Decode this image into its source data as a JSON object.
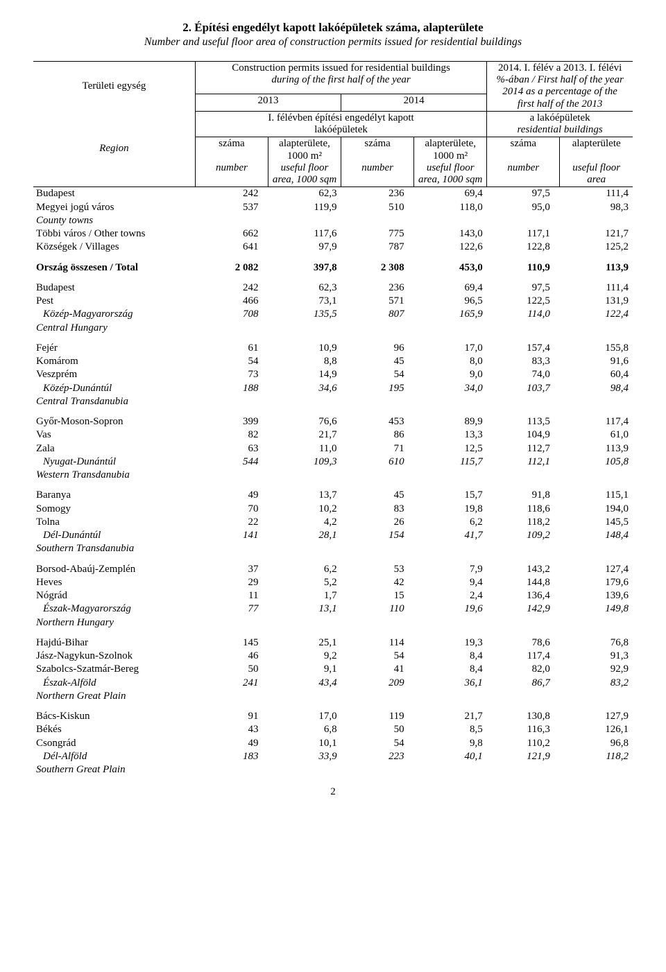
{
  "title": "2. Építési engedélyt kapott lakóépületek száma, alapterülete",
  "subtitle": "Number and useful floor area of construction permits issued for residential buildings",
  "header": {
    "top_left_unit": "Területi egység",
    "top_left_region": "Region",
    "issued_hu": "Construction permits issued for residential buildings",
    "issued_en": "during of the first half of the year",
    "pct_line1": "2014. I. félév a 2013. I. félévi",
    "pct_line2": "%-ában / First half of the year",
    "pct_line3": "2014 as a percentage of the",
    "pct_line4": "first half of the 2013",
    "y2013": "2013",
    "y2014": "2014",
    "span_left_hu": "I. félévben építési engedélyt kapott",
    "span_left_hu2": "lakóépületek",
    "span_right_hu": "a lakóépületek",
    "span_right_en": "residential buildings",
    "col_szama": "száma",
    "col_alap": "alapterülete,",
    "col_alap_u": "1000 m²",
    "col_alap_last": "alapterülete",
    "col_number": "number",
    "col_area": "useful floor",
    "col_area2a": "area, 1000 sqm",
    "col_area2b": "area"
  },
  "rows": [
    {
      "g": "first",
      "label": "Budapest",
      "v": [
        "242",
        "62,3",
        "236",
        "69,4",
        "97,5",
        "111,4"
      ]
    },
    {
      "g": "first",
      "label": "Megyei jogú város",
      "v": [
        "537",
        "119,9",
        "510",
        "118,0",
        "95,0",
        "98,3"
      ]
    },
    {
      "g": "first",
      "label": "County towns",
      "italic": true,
      "v": [
        "",
        "",
        "",
        "",
        "",
        ""
      ]
    },
    {
      "g": "first",
      "label": "Többi város / Other towns",
      "v": [
        "662",
        "117,6",
        "775",
        "143,0",
        "117,1",
        "121,7"
      ]
    },
    {
      "g": "first",
      "label": "Községek / Villages",
      "v": [
        "641",
        "97,9",
        "787",
        "122,6",
        "122,8",
        "125,2"
      ]
    },
    {
      "spacer": true
    },
    {
      "g": "total",
      "label": "Ország összesen / Total",
      "bold": true,
      "v": [
        "2 082",
        "397,8",
        "2 308",
        "453,0",
        "110,9",
        "113,9"
      ]
    },
    {
      "spacer": true
    },
    {
      "g": "b1",
      "label": "Budapest",
      "v": [
        "242",
        "62,3",
        "236",
        "69,4",
        "97,5",
        "111,4"
      ]
    },
    {
      "g": "b1",
      "label": "Pest",
      "v": [
        "466",
        "73,1",
        "571",
        "96,5",
        "122,5",
        "131,9"
      ]
    },
    {
      "g": "b1",
      "label": "Közép-Magyarország",
      "italic": true,
      "indent": true,
      "v": [
        "708",
        "135,5",
        "807",
        "165,9",
        "114,0",
        "122,4"
      ]
    },
    {
      "g": "b1",
      "label": "Central Hungary",
      "italic": true,
      "v": [
        "",
        "",
        "",
        "",
        "",
        ""
      ]
    },
    {
      "spacer": true
    },
    {
      "g": "b2",
      "label": "Fejér",
      "v": [
        "61",
        "10,9",
        "96",
        "17,0",
        "157,4",
        "155,8"
      ]
    },
    {
      "g": "b2",
      "label": "Komárom",
      "v": [
        "54",
        "8,8",
        "45",
        "8,0",
        "83,3",
        "91,6"
      ]
    },
    {
      "g": "b2",
      "label": "Veszprém",
      "v": [
        "73",
        "14,9",
        "54",
        "9,0",
        "74,0",
        "60,4"
      ]
    },
    {
      "g": "b2",
      "label": "Közép-Dunántúl",
      "italic": true,
      "indent": true,
      "v": [
        "188",
        "34,6",
        "195",
        "34,0",
        "103,7",
        "98,4"
      ]
    },
    {
      "g": "b2",
      "label": "Central Transdanubia",
      "italic": true,
      "v": [
        "",
        "",
        "",
        "",
        "",
        ""
      ]
    },
    {
      "spacer": true
    },
    {
      "g": "b3",
      "label": "Győr-Moson-Sopron",
      "v": [
        "399",
        "76,6",
        "453",
        "89,9",
        "113,5",
        "117,4"
      ]
    },
    {
      "g": "b3",
      "label": "Vas",
      "v": [
        "82",
        "21,7",
        "86",
        "13,3",
        "104,9",
        "61,0"
      ]
    },
    {
      "g": "b3",
      "label": "Zala",
      "v": [
        "63",
        "11,0",
        "71",
        "12,5",
        "112,7",
        "113,9"
      ]
    },
    {
      "g": "b3",
      "label": "Nyugat-Dunántúl",
      "italic": true,
      "indent": true,
      "v": [
        "544",
        "109,3",
        "610",
        "115,7",
        "112,1",
        "105,8"
      ]
    },
    {
      "g": "b3",
      "label": "Western Transdanubia",
      "italic": true,
      "v": [
        "",
        "",
        "",
        "",
        "",
        ""
      ]
    },
    {
      "spacer": true
    },
    {
      "g": "b4",
      "label": "Baranya",
      "v": [
        "49",
        "13,7",
        "45",
        "15,7",
        "91,8",
        "115,1"
      ]
    },
    {
      "g": "b4",
      "label": "Somogy",
      "v": [
        "70",
        "10,2",
        "83",
        "19,8",
        "118,6",
        "194,0"
      ]
    },
    {
      "g": "b4",
      "label": "Tolna",
      "v": [
        "22",
        "4,2",
        "26",
        "6,2",
        "118,2",
        "145,5"
      ]
    },
    {
      "g": "b4",
      "label": "Dél-Dunántúl",
      "italic": true,
      "indent": true,
      "v": [
        "141",
        "28,1",
        "154",
        "41,7",
        "109,2",
        "148,4"
      ]
    },
    {
      "g": "b4",
      "label": "Southern Transdanubia",
      "italic": true,
      "v": [
        "",
        "",
        "",
        "",
        "",
        ""
      ]
    },
    {
      "spacer": true
    },
    {
      "g": "b5",
      "label": "Borsod-Abaúj-Zemplén",
      "v": [
        "37",
        "6,2",
        "53",
        "7,9",
        "143,2",
        "127,4"
      ]
    },
    {
      "g": "b5",
      "label": "Heves",
      "v": [
        "29",
        "5,2",
        "42",
        "9,4",
        "144,8",
        "179,6"
      ]
    },
    {
      "g": "b5",
      "label": "Nógrád",
      "v": [
        "11",
        "1,7",
        "15",
        "2,4",
        "136,4",
        "139,6"
      ]
    },
    {
      "g": "b5",
      "label": "Észak-Magyarország",
      "italic": true,
      "indent": true,
      "v": [
        "77",
        "13,1",
        "110",
        "19,6",
        "142,9",
        "149,8"
      ]
    },
    {
      "g": "b5",
      "label": "Northern Hungary",
      "italic": true,
      "v": [
        "",
        "",
        "",
        "",
        "",
        ""
      ]
    },
    {
      "spacer": true
    },
    {
      "g": "b6",
      "label": "Hajdú-Bihar",
      "v": [
        "145",
        "25,1",
        "114",
        "19,3",
        "78,6",
        "76,8"
      ]
    },
    {
      "g": "b6",
      "label": "Jász-Nagykun-Szolnok",
      "v": [
        "46",
        "9,2",
        "54",
        "8,4",
        "117,4",
        "91,3"
      ]
    },
    {
      "g": "b6",
      "label": "Szabolcs-Szatmár-Bereg",
      "v": [
        "50",
        "9,1",
        "41",
        "8,4",
        "82,0",
        "92,9"
      ]
    },
    {
      "g": "b6",
      "label": "Észak-Alföld",
      "italic": true,
      "indent": true,
      "v": [
        "241",
        "43,4",
        "209",
        "36,1",
        "86,7",
        "83,2"
      ]
    },
    {
      "g": "b6",
      "label": "Northern Great Plain",
      "italic": true,
      "v": [
        "",
        "",
        "",
        "",
        "",
        ""
      ]
    },
    {
      "spacer": true
    },
    {
      "g": "b7",
      "label": "Bács-Kiskun",
      "v": [
        "91",
        "17,0",
        "119",
        "21,7",
        "130,8",
        "127,9"
      ]
    },
    {
      "g": "b7",
      "label": "Békés",
      "v": [
        "43",
        "6,8",
        "50",
        "8,5",
        "116,3",
        "126,1"
      ]
    },
    {
      "g": "b7",
      "label": "Csongrád",
      "v": [
        "49",
        "10,1",
        "54",
        "9,8",
        "110,2",
        "96,8"
      ]
    },
    {
      "g": "b7",
      "label": "Dél-Alföld",
      "italic": true,
      "indent": true,
      "v": [
        "183",
        "33,9",
        "223",
        "40,1",
        "121,9",
        "118,2"
      ]
    },
    {
      "g": "b7",
      "label": "Southern Great Plain",
      "italic": true,
      "v": [
        "",
        "",
        "",
        "",
        "",
        ""
      ]
    }
  ],
  "page_number": "2"
}
